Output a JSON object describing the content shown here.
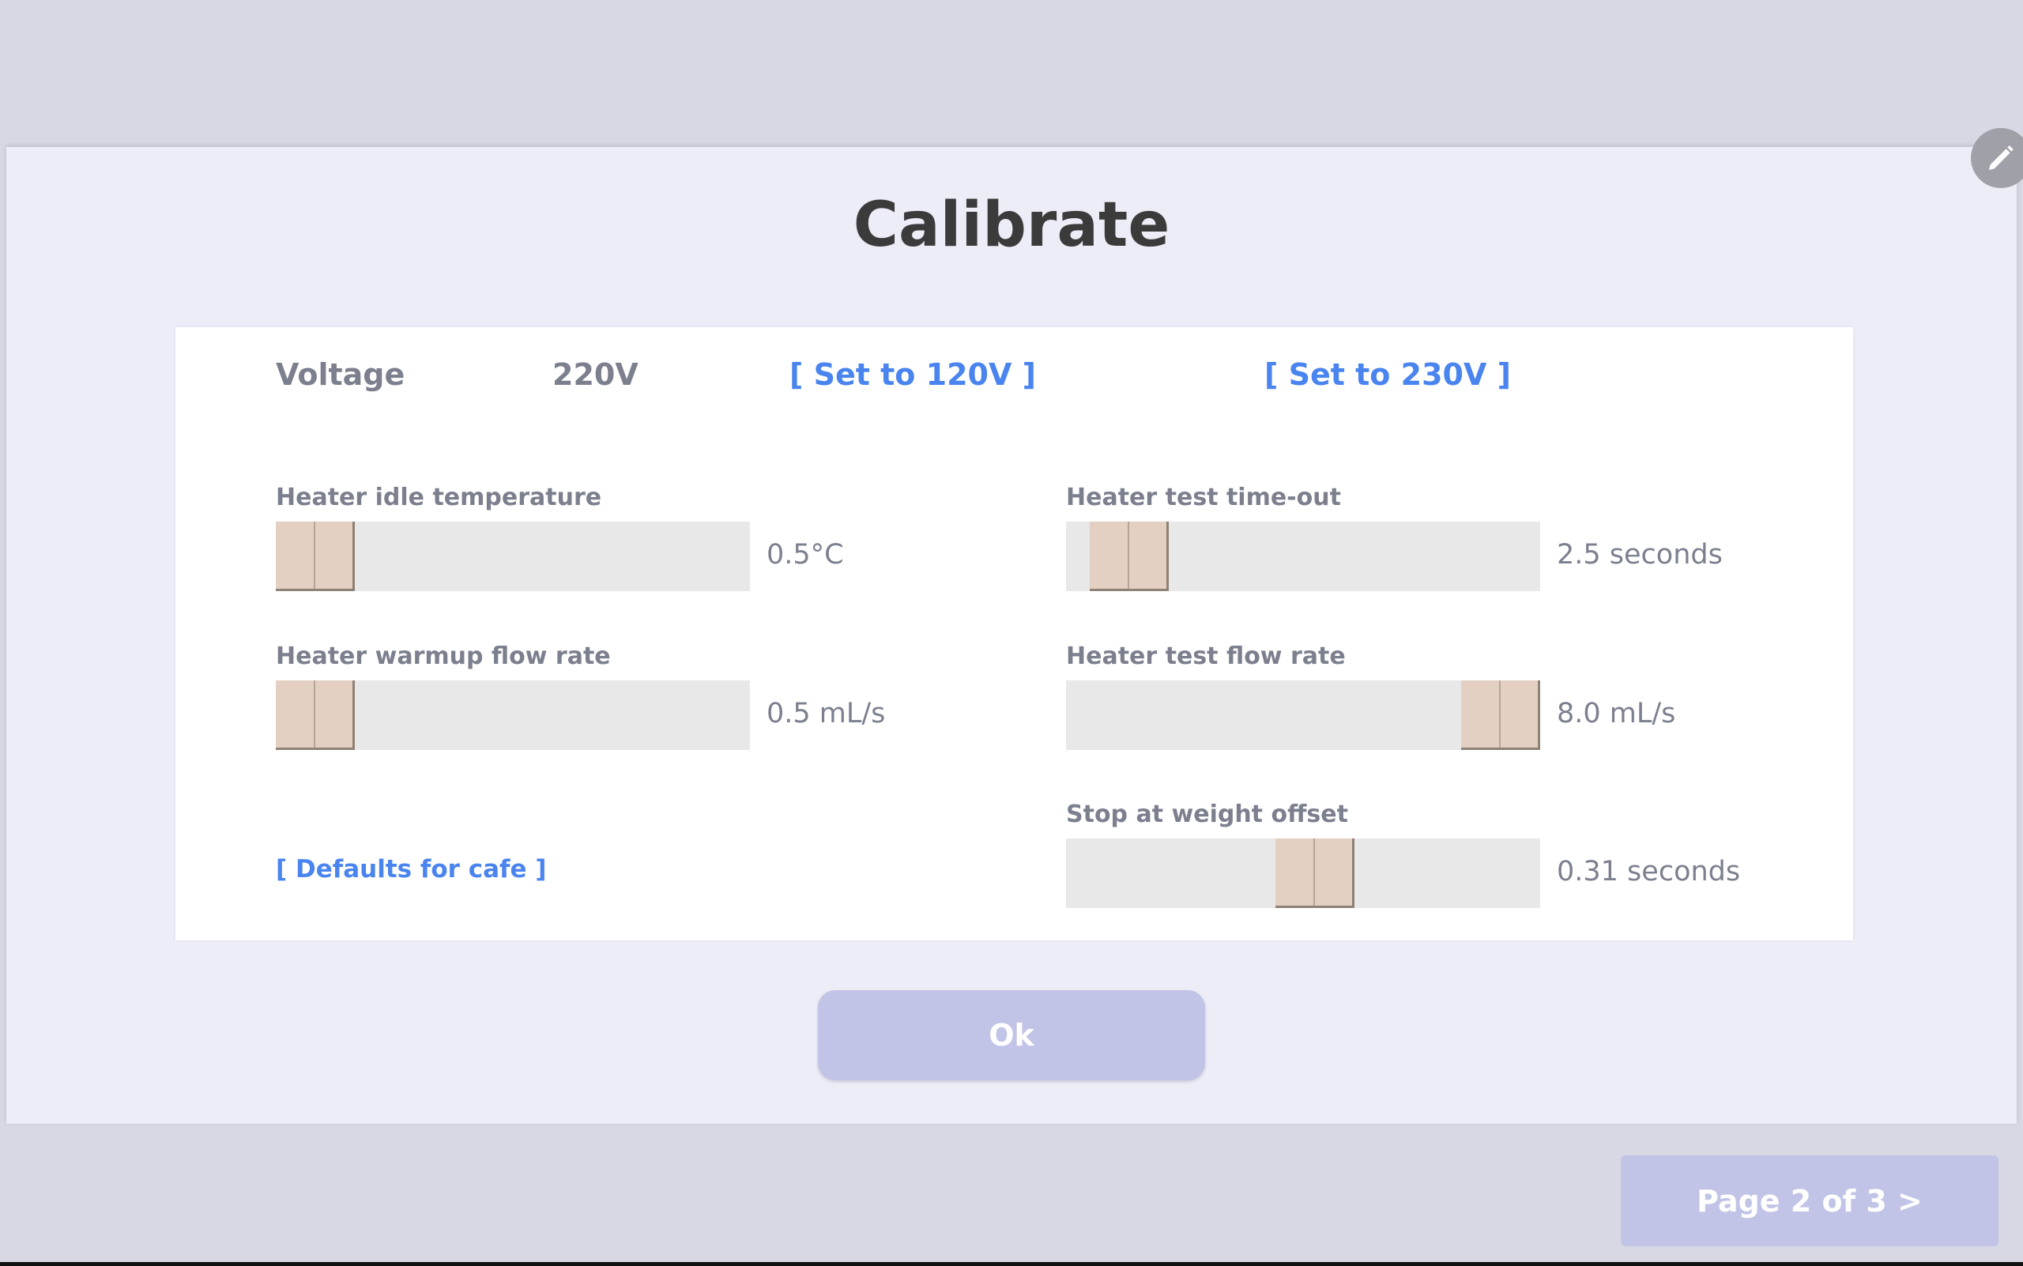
{
  "title": "Calibrate",
  "voltage": {
    "label": "Voltage",
    "value": "220V",
    "set120": "[ Set to 120V ]",
    "set230": "[ Set to 230V ]"
  },
  "sliders": [
    {
      "label": "Heater idle temperature",
      "value": "0.5°C",
      "fraction": 0.0
    },
    {
      "label": "Heater warmup flow rate",
      "value": "0.5 mL/s",
      "fraction": 0.0
    },
    {
      "label": "Heater test time-out",
      "value": "2.5 seconds",
      "fraction": 0.06
    },
    {
      "label": "Heater test flow rate",
      "value": "8.0 mL/s",
      "fraction": 1.0
    },
    {
      "label": "Stop at weight offset",
      "value": "0.31 seconds",
      "fraction": 0.53
    }
  ],
  "defaults_link": "[ Defaults for cafe ]",
  "ok_label": "Ok",
  "page_label": "Page 2 of 3 >",
  "colors": {
    "accent": "#4a84ee",
    "button": "#c1c4e6",
    "thumb": "#e3d0c2"
  },
  "icons": {
    "edit": "pencil-icon"
  }
}
